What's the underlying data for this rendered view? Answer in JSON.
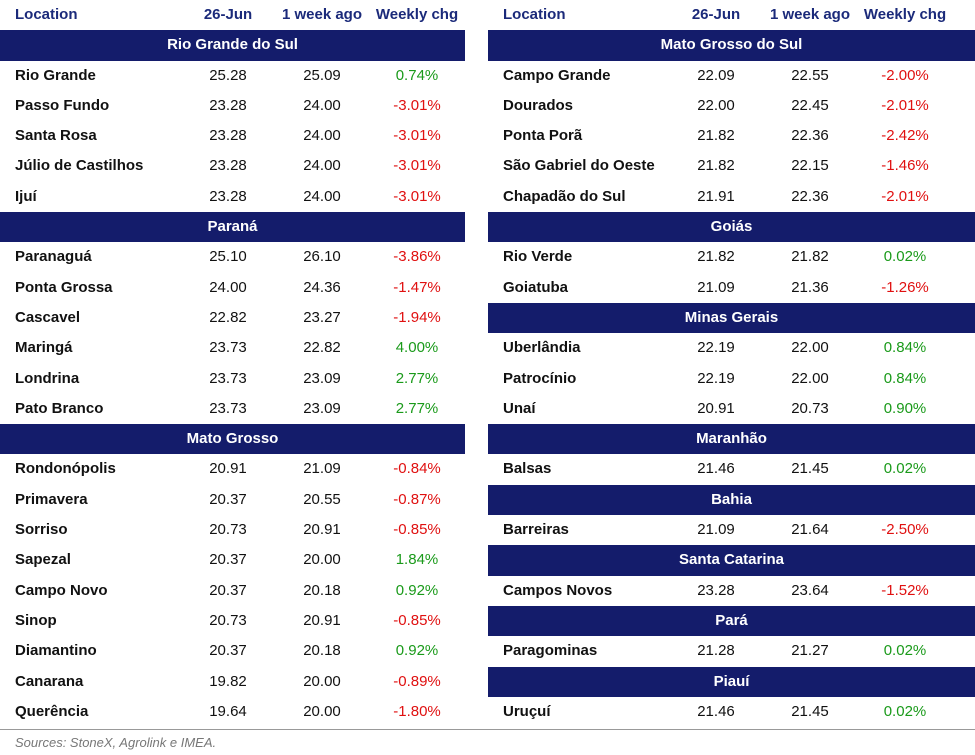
{
  "tables": [
    {
      "columns": [
        "Location",
        "26-Jun",
        "1 week ago",
        "Weekly chg"
      ],
      "groups": [
        {
          "name": "Rio Grande do Sul",
          "rows": [
            [
              "Rio Grande",
              "25.28",
              "25.09",
              "0.74%"
            ],
            [
              "Passo Fundo",
              "23.28",
              "24.00",
              "-3.01%"
            ],
            [
              "Santa Rosa",
              "23.28",
              "24.00",
              "-3.01%"
            ],
            [
              "Júlio de Castilhos",
              "23.28",
              "24.00",
              "-3.01%"
            ],
            [
              "Ijuí",
              "23.28",
              "24.00",
              "-3.01%"
            ]
          ]
        },
        {
          "name": "Paraná",
          "rows": [
            [
              "Paranaguá",
              "25.10",
              "26.10",
              "-3.86%"
            ],
            [
              "Ponta Grossa",
              "24.00",
              "24.36",
              "-1.47%"
            ],
            [
              "Cascavel",
              "22.82",
              "23.27",
              "-1.94%"
            ],
            [
              "Maringá",
              "23.73",
              "22.82",
              "4.00%"
            ],
            [
              "Londrina",
              "23.73",
              "23.09",
              "2.77%"
            ],
            [
              "Pato Branco",
              "23.73",
              "23.09",
              "2.77%"
            ]
          ]
        },
        {
          "name": "Mato Grosso",
          "rows": [
            [
              "Rondonópolis",
              "20.91",
              "21.09",
              "-0.84%"
            ],
            [
              "Primavera",
              "20.37",
              "20.55",
              "-0.87%"
            ],
            [
              "Sorriso",
              "20.73",
              "20.91",
              "-0.85%"
            ],
            [
              "Sapezal",
              "20.37",
              "20.00",
              "1.84%"
            ],
            [
              "Campo Novo",
              "20.37",
              "20.18",
              "0.92%"
            ],
            [
              "Sinop",
              "20.73",
              "20.91",
              "-0.85%"
            ],
            [
              "Diamantino",
              "20.37",
              "20.18",
              "0.92%"
            ],
            [
              "Canarana",
              "19.82",
              "20.00",
              "-0.89%"
            ],
            [
              "Querência",
              "19.64",
              "20.00",
              "-1.80%"
            ]
          ]
        }
      ]
    },
    {
      "columns": [
        "Location",
        "26-Jun",
        "1 week ago",
        "Weekly chg"
      ],
      "groups": [
        {
          "name": "Mato Grosso do Sul",
          "rows": [
            [
              "Campo Grande",
              "22.09",
              "22.55",
              "-2.00%"
            ],
            [
              "Dourados",
              "22.00",
              "22.45",
              "-2.01%"
            ],
            [
              "Ponta Porã",
              "21.82",
              "22.36",
              "-2.42%"
            ],
            [
              "São Gabriel do Oeste",
              "21.82",
              "22.15",
              "-1.46%"
            ],
            [
              "Chapadão do Sul",
              "21.91",
              "22.36",
              "-2.01%"
            ]
          ]
        },
        {
          "name": "Goiás",
          "rows": [
            [
              "Rio Verde",
              "21.82",
              "21.82",
              "0.02%"
            ],
            [
              "Goiatuba",
              "21.09",
              "21.36",
              "-1.26%"
            ]
          ]
        },
        {
          "name": "Minas Gerais",
          "rows": [
            [
              "Uberlândia",
              "22.19",
              "22.00",
              "0.84%"
            ],
            [
              "Patrocínio",
              "22.19",
              "22.00",
              "0.84%"
            ],
            [
              "Unaí",
              "20.91",
              "20.73",
              "0.90%"
            ]
          ]
        },
        {
          "name": "Maranhão",
          "rows": [
            [
              "Balsas",
              "21.46",
              "21.45",
              "0.02%"
            ]
          ]
        },
        {
          "name": "Bahia",
          "rows": [
            [
              "Barreiras",
              "21.09",
              "21.64",
              "-2.50%"
            ]
          ]
        },
        {
          "name": "Santa Catarina",
          "rows": [
            [
              "Campos Novos",
              "23.28",
              "23.64",
              "-1.52%"
            ]
          ]
        },
        {
          "name": "Pará",
          "rows": [
            [
              "Paragominas",
              "21.28",
              "21.27",
              "0.02%"
            ]
          ]
        },
        {
          "name": "Piauí",
          "rows": [
            [
              "Uruçuí",
              "21.46",
              "21.45",
              "0.02%"
            ]
          ]
        }
      ]
    }
  ],
  "sources": "Sources: StoneX, Agrolink e IMEA."
}
